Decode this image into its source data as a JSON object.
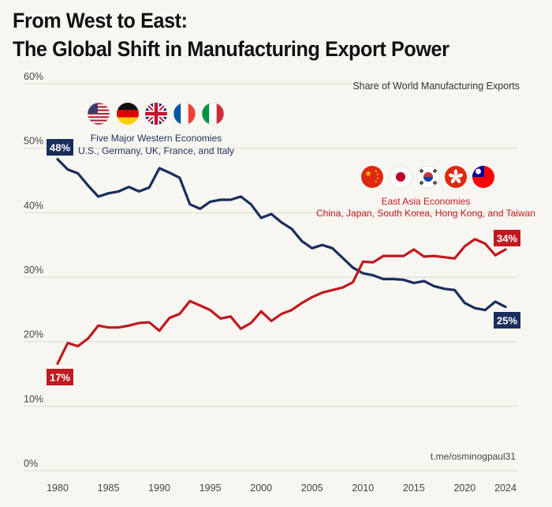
{
  "title_line1": "From West to East:",
  "title_line2": "The Global Shift in Manufacturing Export Power",
  "chart_data": {
    "type": "line",
    "subtitle": "Share of World Manufacturing Exports",
    "xlabel": "",
    "ylabel": "",
    "xlim": [
      1980,
      2024
    ],
    "ylim": [
      0,
      60
    ],
    "x_ticks": [
      1980,
      1985,
      1990,
      1995,
      2000,
      2005,
      2010,
      2015,
      2020,
      2024
    ],
    "y_ticks": [
      0,
      10,
      20,
      30,
      40,
      50,
      60
    ],
    "y_tick_labels": [
      "0%",
      "10%",
      "20%",
      "30%",
      "40%",
      "50%",
      "60%"
    ],
    "grid": true,
    "x": [
      1980,
      1981,
      1982,
      1983,
      1984,
      1985,
      1986,
      1987,
      1988,
      1989,
      1990,
      1991,
      1992,
      1993,
      1994,
      1995,
      1996,
      1997,
      1998,
      1999,
      2000,
      2001,
      2002,
      2003,
      2004,
      2005,
      2006,
      2007,
      2008,
      2009,
      2010,
      2011,
      2012,
      2013,
      2014,
      2015,
      2016,
      2017,
      2018,
      2019,
      2020,
      2021,
      2022,
      2023,
      2024
    ],
    "series": [
      {
        "name": "Five Major Western Economies",
        "color": "#1a2e5c",
        "values": [
          48.3,
          46.7,
          46.1,
          44.2,
          42.5,
          43.0,
          43.3,
          44.0,
          43.3,
          43.9,
          46.9,
          46.2,
          45.4,
          41.3,
          40.6,
          41.7,
          42.0,
          42.0,
          42.5,
          41.3,
          39.2,
          39.8,
          38.5,
          37.5,
          35.6,
          34.5,
          35.0,
          34.5,
          33.0,
          31.5,
          30.6,
          30.3,
          29.7,
          29.7,
          29.6,
          29.1,
          29.4,
          28.6,
          28.2,
          28.0,
          26.0,
          25.2,
          24.9,
          26.2,
          25.4
        ]
      },
      {
        "name": "East Asia Economies",
        "color": "#c0191f",
        "values": [
          16.6,
          19.8,
          19.3,
          20.5,
          22.5,
          22.2,
          22.2,
          22.5,
          22.9,
          23.0,
          21.7,
          23.7,
          24.3,
          26.3,
          25.6,
          24.9,
          23.6,
          23.9,
          22.0,
          22.9,
          24.7,
          23.2,
          24.3,
          24.9,
          26.0,
          26.9,
          27.6,
          28.0,
          28.4,
          29.2,
          32.4,
          32.3,
          33.3,
          33.3,
          33.3,
          34.3,
          33.2,
          33.3,
          33.1,
          32.9,
          34.8,
          35.9,
          35.2,
          33.4,
          34.3
        ]
      }
    ],
    "end_labels": {
      "west_start": "48%",
      "west_end": "25%",
      "east_start": "17%",
      "east_end": "34%"
    },
    "annotations": {
      "west_title": "Five Major Western Economies",
      "west_members": "U.S., Germany, UK, France, and Italy",
      "east_title": "East Asia Economies",
      "east_members": "China, Japan, South Korea, Hong Kong, and Taiwan"
    },
    "source": "t.me/osminogpaul31"
  },
  "flags_west": [
    "us-flag-icon",
    "germany-flag-icon",
    "uk-flag-icon",
    "france-flag-icon",
    "italy-flag-icon"
  ],
  "flags_east": [
    "china-flag-icon",
    "japan-flag-icon",
    "south-korea-flag-icon",
    "hong-kong-flag-icon",
    "taiwan-flag-icon"
  ]
}
